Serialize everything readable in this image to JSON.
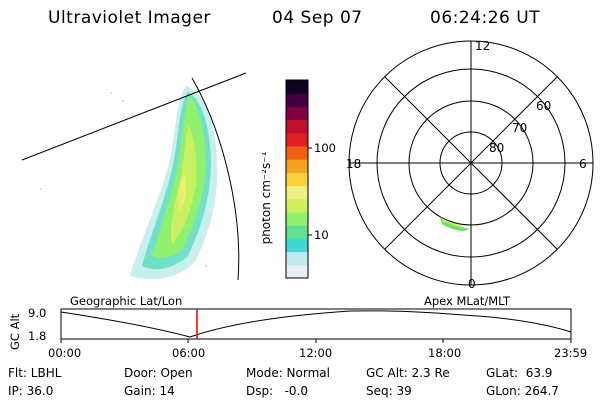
{
  "header": {
    "instrument": "Ultraviolet Imager",
    "date": "04 Sep 07",
    "time": "06:24:26 UT"
  },
  "colorbar": {
    "label": "photon cm⁻²s⁻¹",
    "ticks": [
      "100",
      "10"
    ],
    "colors": [
      "#e8eef2",
      "#bfe9ea",
      "#40d8d0",
      "#60e090",
      "#90f070",
      "#d0f060",
      "#f0f080",
      "#f8d040",
      "#f8a020",
      "#f06010",
      "#e02020",
      "#c01030",
      "#800040",
      "#400040",
      "#100020"
    ]
  },
  "polar": {
    "hour_labels": {
      "top": "12",
      "left": "18",
      "right": "6",
      "bottom": "0"
    },
    "lat_labels": [
      "60",
      "70",
      "80"
    ]
  },
  "timeline": {
    "left_title": "Geographic Lat/Lon",
    "right_title": "Apex MLat/MLT",
    "y_label": "GC Alt",
    "y_ticks": [
      "9.0",
      "1.8"
    ],
    "x_ticks": [
      "00:00",
      "06:00",
      "12:00",
      "18:00",
      "23:59"
    ],
    "marker_color": "#e00000"
  },
  "info": {
    "flt": "Flt: LBHL",
    "ip": "IP: 36.0",
    "door": "Door: Open",
    "gain": "Gain: 14",
    "mode": "Mode: Normal",
    "dsp": "Dsp:   -0.0",
    "gcalt": "GC Alt: 2.3 Re",
    "seq": "Seq: 39",
    "glat": "GLat:  63.9",
    "glon": "GLon: 264.7"
  }
}
